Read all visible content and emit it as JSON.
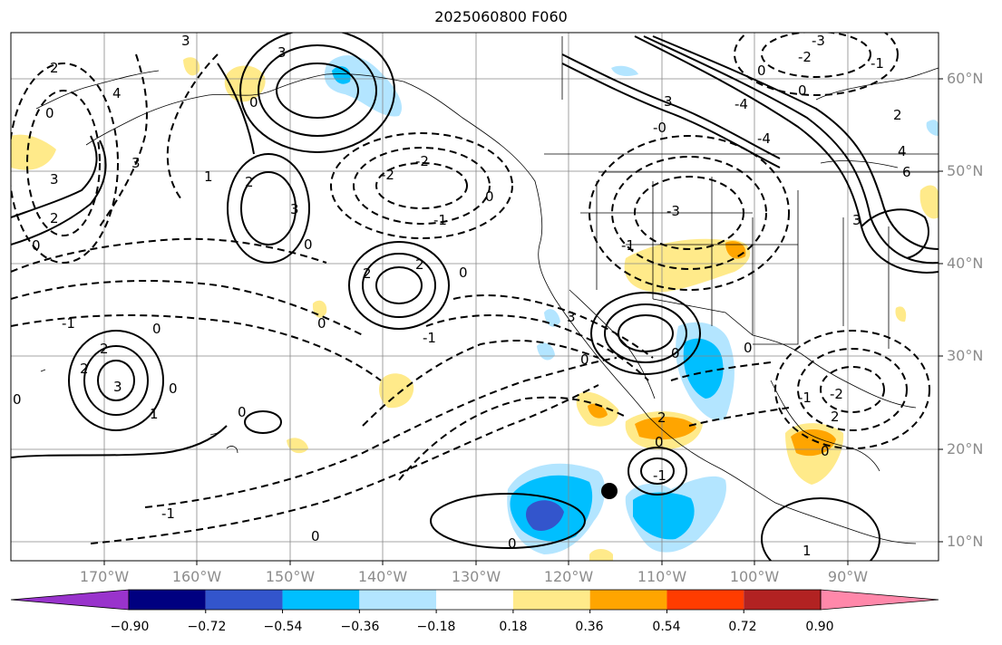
{
  "title": "2025060800 F060",
  "lat_labels": [
    "60°N",
    "50°N",
    "40°N",
    "30°N",
    "20°N",
    "10°N"
  ],
  "lon_labels": [
    "170°W",
    "160°W",
    "150°W",
    "140°W",
    "130°W",
    "120°W",
    "110°W",
    "100°W",
    "90°W"
  ],
  "colorbar": {
    "labels": [
      "−0.90",
      "−0.72",
      "−0.54",
      "−0.36",
      "−0.18",
      "0.18",
      "0.36",
      "0.54",
      "0.72",
      "0.90"
    ],
    "colors": [
      "#9933cc",
      "#000080",
      "#3355cc",
      "#00bfff",
      "#b3e5ff",
      "#ffffff",
      "#ffea8a",
      "#ffa500",
      "#ff3c00",
      "#b22222",
      "#ff88aa"
    ]
  },
  "contour_labels": [
    "3",
    "-3",
    "-2",
    "-1",
    "0",
    "1",
    "2",
    "4",
    "-4"
  ],
  "station_marker": "filled-circle"
}
